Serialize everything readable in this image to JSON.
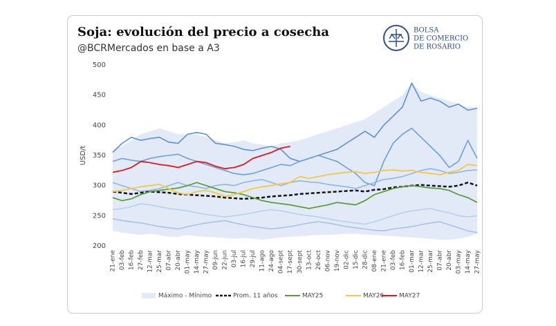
{
  "logo": [
    "BOLSA",
    "DE COMERCIO",
    "DE ROSARIO"
  ],
  "chart_data": {
    "type": "line",
    "title": "Soja: evolución del precio a cosecha",
    "subtitle": "@BCRMercados en base a A3",
    "y_label": "USD/t",
    "categories": [
      "21-ene",
      "03-feb",
      "16-feb",
      "27-feb",
      "12-mar",
      "25-mar",
      "07-abr",
      "20-abr",
      "01-may",
      "14-may",
      "27-may",
      "09-jun",
      "22-jun",
      "03-jul",
      "16-jul",
      "29-jul",
      "11-ago",
      "24-ago",
      "04-sept",
      "17-sept",
      "30-sept",
      "13-oct",
      "26-oct",
      "06-nov",
      "19-nov",
      "02-dic",
      "15-dic",
      "28-dic",
      "08-ene",
      "21-ene",
      "03-feb",
      "16-feb",
      "01-mar",
      "12-mar",
      "25-mar",
      "07-abr",
      "20-abr",
      "03-may",
      "14-may",
      "27-may"
    ],
    "ylim": [
      200,
      500
    ],
    "yticks": [
      200,
      250,
      300,
      350,
      400,
      450,
      500
    ],
    "grid": false,
    "band": {
      "name": "Máximo - Mínimo",
      "color": "#e3eaf7",
      "max": [
        360,
        365,
        375,
        385,
        390,
        395,
        390,
        385,
        385,
        385,
        380,
        375,
        370,
        372,
        375,
        370,
        368,
        365,
        370,
        372,
        375,
        380,
        385,
        390,
        395,
        400,
        405,
        410,
        420,
        430,
        440,
        450,
        470,
        455,
        450,
        445,
        440,
        435,
        430,
        430
      ],
      "min": [
        225,
        222,
        220,
        218,
        220,
        218,
        215,
        215,
        218,
        216,
        215,
        214,
        213,
        212,
        213,
        212,
        210,
        212,
        214,
        215,
        216,
        217,
        218,
        218,
        219,
        220,
        220,
        219,
        218,
        217,
        216,
        215,
        214,
        213,
        212,
        210,
        210,
        212,
        215,
        220
      ]
    },
    "history": [
      {
        "color": "#5b8fd6",
        "values": [
          355,
          370,
          380,
          375,
          378,
          380,
          372,
          370,
          385,
          388,
          385,
          370,
          368,
          365,
          360,
          358,
          362,
          365,
          360,
          345,
          340,
          345,
          350,
          355,
          360,
          370,
          380,
          390,
          380,
          400,
          415,
          430,
          470,
          440,
          445,
          440,
          430,
          435,
          425,
          428
        ]
      },
      {
        "color": "#6a9ee0",
        "values": [
          340,
          345,
          342,
          340,
          345,
          348,
          350,
          352,
          345,
          340,
          335,
          330,
          325,
          320,
          318,
          320,
          325,
          330,
          335,
          333,
          340,
          345,
          350,
          345,
          340,
          330,
          320,
          305,
          300,
          340,
          370,
          385,
          395,
          380,
          365,
          350,
          330,
          340,
          375,
          345
        ]
      },
      {
        "color": "#8fb4e8",
        "values": [
          305,
          300,
          295,
          290,
          292,
          295,
          300,
          305,
          300,
          298,
          295,
          300,
          302,
          300,
          305,
          308,
          310,
          305,
          300,
          305,
          308,
          306,
          305,
          302,
          300,
          298,
          295,
          300,
          305,
          310,
          312,
          315,
          320,
          325,
          328,
          325,
          320,
          322,
          325,
          326
        ]
      },
      {
        "color": "#b8cff0",
        "values": [
          260,
          262,
          265,
          270,
          268,
          265,
          262,
          260,
          258,
          255,
          252,
          250,
          248,
          250,
          252,
          255,
          258,
          260,
          258,
          255,
          252,
          250,
          248,
          245,
          242,
          240,
          238,
          236,
          240,
          245,
          250,
          255,
          258,
          260,
          262,
          258,
          255,
          250,
          248,
          250
        ]
      },
      {
        "color": "#a5c2ec",
        "values": [
          245,
          242,
          240,
          238,
          235,
          232,
          230,
          228,
          232,
          235,
          238,
          240,
          242,
          238,
          235,
          232,
          230,
          228,
          230,
          232,
          235,
          238,
          240,
          238,
          235,
          232,
          230,
          228,
          226,
          225,
          228,
          230,
          232,
          235,
          238,
          240,
          235,
          230,
          225,
          222
        ]
      }
    ],
    "series": [
      {
        "name": "Prom. 11 años",
        "color": "#111111",
        "dashed": true,
        "values": [
          290,
          288,
          286,
          288,
          290,
          289,
          288,
          286,
          285,
          284,
          283,
          282,
          280,
          279,
          278,
          279,
          280,
          282,
          283,
          284,
          286,
          287,
          288,
          289,
          290,
          291,
          292,
          290,
          293,
          294,
          297,
          298,
          300,
          301,
          300,
          299,
          298,
          300,
          305,
          300
        ]
      },
      {
        "name": "MAY25",
        "color": "#5a9e3a",
        "values": [
          280,
          275,
          278,
          285,
          290,
          292,
          294,
          296,
          300,
          305,
          300,
          295,
          290,
          288,
          285,
          280,
          275,
          272,
          270,
          268,
          265,
          262,
          265,
          268,
          272,
          270,
          268,
          275,
          285,
          290,
          295,
          298,
          300,
          298,
          296,
          295,
          292,
          285,
          280,
          272
        ]
      },
      {
        "name": "MAY26",
        "color": "#f5c842",
        "values": [
          290,
          292,
          295,
          298,
          300,
          302,
          295,
          288,
          285,
          290,
          292,
          288,
          282,
          285,
          290,
          295,
          298,
          300,
          303,
          305,
          315,
          312,
          315,
          318,
          320,
          322,
          323,
          320,
          322,
          325,
          326,
          324,
          325,
          322,
          320,
          318,
          322,
          325,
          335,
          333
        ]
      },
      {
        "name": "MAY27",
        "color": "#e8141b",
        "values": [
          322,
          325,
          330,
          340,
          338,
          335,
          333,
          330,
          335,
          340,
          338,
          332,
          328,
          330,
          335,
          345,
          350,
          355,
          362,
          365,
          null,
          null,
          null,
          null,
          null,
          null,
          null,
          null,
          null,
          null,
          null,
          null,
          null,
          null,
          null,
          null,
          null,
          null,
          null,
          null
        ]
      }
    ]
  }
}
